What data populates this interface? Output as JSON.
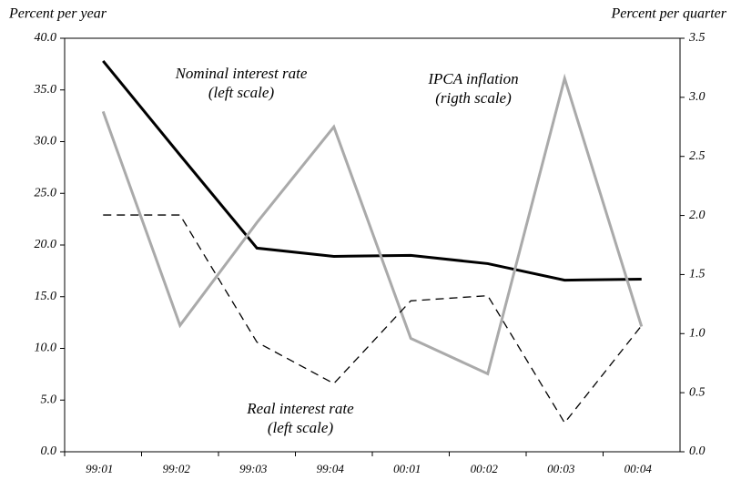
{
  "chart_data": {
    "type": "line",
    "y_label": "Percent per year",
    "y2_label": "Percent per quarter",
    "categories": [
      "99:01",
      "99:02",
      "99:03",
      "99:04",
      "00:01",
      "00:02",
      "00:03",
      "00:04"
    ],
    "series": [
      {
        "name": "Nominal interest rate",
        "scale_note": "(left scale)",
        "color": "#000000",
        "axis": "y",
        "values": [
          37.8,
          28.7,
          19.7,
          18.9,
          19.0,
          18.2,
          16.6,
          16.7
        ]
      },
      {
        "name": "IPCA inflation",
        "scale_note": "(rigth scale)",
        "color": "#aaaaaa",
        "axis": "y2",
        "values": [
          2.88,
          1.07,
          1.94,
          2.75,
          0.96,
          0.66,
          3.16,
          1.06
        ]
      },
      {
        "name": "Real interest rate",
        "scale_note": "(left scale)",
        "color": "#000000",
        "axis": "y",
        "dashed": true,
        "values": [
          22.9,
          22.9,
          10.6,
          6.6,
          14.6,
          15.1,
          2.8,
          12.2
        ]
      }
    ],
    "ylim": [
      0,
      40
    ],
    "yticks": [
      {
        "value": 0,
        "label": "0.0"
      },
      {
        "value": 5,
        "label": "5.0"
      },
      {
        "value": 10,
        "label": "10.0"
      },
      {
        "value": 15,
        "label": "15.0"
      },
      {
        "value": 20,
        "label": "20.0"
      },
      {
        "value": 25,
        "label": "25.0"
      },
      {
        "value": 30,
        "label": "30.0"
      },
      {
        "value": 35,
        "label": "35.0"
      },
      {
        "value": 40,
        "label": "40.0"
      }
    ],
    "y2lim": [
      0,
      3.5
    ],
    "y2ticks": [
      {
        "value": 0,
        "label": "0.0"
      },
      0.5,
      {
        "value": 1,
        "label": "1.0"
      },
      1.5,
      {
        "value": 2,
        "label": "2.0"
      },
      2.5,
      {
        "value": 3,
        "label": "3.0"
      },
      3.5
    ],
    "grid": false
  }
}
